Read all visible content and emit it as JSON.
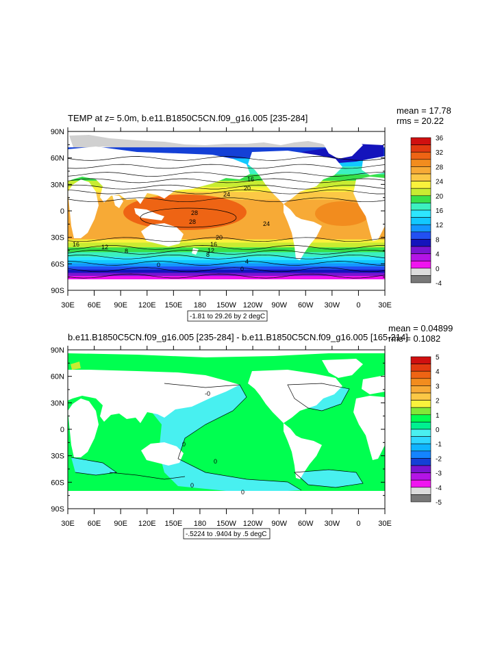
{
  "panels": [
    {
      "title": "TEMP at z=   5.0m, b.e11.B1850C5CN.f09_g16.005 [235-284]",
      "mean_text": "mean = 17.78",
      "rms_text": "rms = 20.22",
      "range_box": "-1.81 to 29.26 by 2 degC",
      "colorbar": {
        "labels": [
          "36",
          "32",
          "28",
          "24",
          "20",
          "16",
          "12",
          "8",
          "4",
          "0",
          "-4"
        ],
        "colors": [
          "#d01010",
          "#e23a10",
          "#ee6414",
          "#f28c1e",
          "#f7aa36",
          "#fbc846",
          "#faf23c",
          "#c8ec32",
          "#38e04a",
          "#3cf0c0",
          "#2ee6ff",
          "#12c8ff",
          "#1496ff",
          "#2250f2",
          "#1414bc",
          "#7a14d2",
          "#b414e6",
          "#f014f0",
          "#dcdcdc",
          "#787878"
        ]
      },
      "contour_labels": [
        "16",
        "20",
        "24",
        "28",
        "28",
        "24",
        "20",
        "16",
        "12",
        "8",
        "16",
        "12",
        "8",
        "4",
        "0",
        "0",
        "4"
      ],
      "field": "sst"
    },
    {
      "title": "b.e11.B1850C5CN.f09_g16.005 [235-284] - b.e11.B1850C5CN.f09_g16.005 [165-214]",
      "mean_text": "mean = 0.04899",
      "rms_text": "rms = 0.1082",
      "range_box": "-.5224 to .9404 by .5 degC",
      "colorbar": {
        "labels": [
          "5",
          "4",
          "3",
          "2",
          "1",
          "0",
          "-1",
          "-2",
          "-3",
          "-4",
          "-5"
        ],
        "colors": [
          "#d01010",
          "#e23a10",
          "#ee6414",
          "#f28c1e",
          "#f7aa36",
          "#fbc846",
          "#faf23c",
          "#80e838",
          "#00ff50",
          "#00f090",
          "#4af0f0",
          "#30d8ff",
          "#10b4ff",
          "#1484ff",
          "#1440d6",
          "#7a14d2",
          "#b414e6",
          "#f014f0",
          "#dcdcdc",
          "#787878"
        ]
      },
      "contour_labels": [
        "0",
        "0",
        "0",
        "0",
        "-0"
      ],
      "field": "diff"
    }
  ],
  "axes": {
    "lat_labels": [
      "90N",
      "60N",
      "30N",
      "0",
      "30S",
      "60S",
      "90S"
    ],
    "lon_labels": [
      "30E",
      "60E",
      "90E",
      "120E",
      "150E",
      "180",
      "150W",
      "120W",
      "90W",
      "60W",
      "30W",
      "0",
      "30E"
    ]
  }
}
